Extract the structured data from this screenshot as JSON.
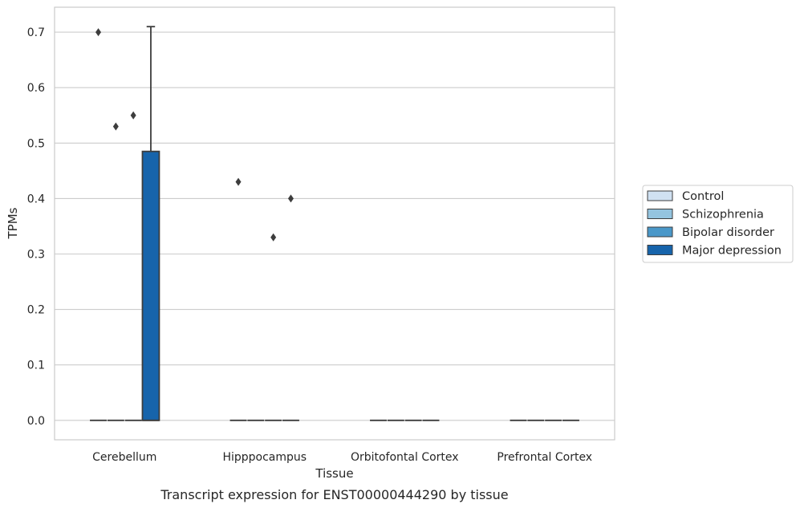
{
  "chart_data": {
    "type": "box",
    "title": "",
    "caption": "Transcript expression for ENST00000444290 by tissue",
    "xlabel": "Tissue",
    "ylabel": "TPMs",
    "ylim": [
      -0.035,
      0.745
    ],
    "yticks": [
      0.0,
      0.1,
      0.2,
      0.3,
      0.4,
      0.5,
      0.6,
      0.7
    ],
    "ytick_labels": [
      "0.0",
      "0.1",
      "0.2",
      "0.3",
      "0.4",
      "0.5",
      "0.6",
      "0.7"
    ],
    "grid": true,
    "legend_position": "right",
    "categories": [
      "Cerebellum",
      "Hipppocampus",
      "Orbitofontal Cortex",
      "Prefrontal Cortex"
    ],
    "series": [
      {
        "name": "Control",
        "color": "#d0e1f2",
        "boxes": [
          {
            "q1": 0,
            "median": 0,
            "q3": 0,
            "whisker_low": 0,
            "whisker_high": 0,
            "outliers": [
              0.7
            ]
          },
          {
            "q1": 0,
            "median": 0,
            "q3": 0,
            "whisker_low": 0,
            "whisker_high": 0,
            "outliers": [
              0.43
            ]
          },
          {
            "q1": 0,
            "median": 0,
            "q3": 0,
            "whisker_low": 0,
            "whisker_high": 0,
            "outliers": []
          },
          {
            "q1": 0,
            "median": 0,
            "q3": 0,
            "whisker_low": 0,
            "whisker_high": 0,
            "outliers": []
          }
        ]
      },
      {
        "name": "Schizophrenia",
        "color": "#94c4df",
        "boxes": [
          {
            "q1": 0,
            "median": 0,
            "q3": 0,
            "whisker_low": 0,
            "whisker_high": 0,
            "outliers": [
              0.53
            ]
          },
          {
            "q1": 0,
            "median": 0,
            "q3": 0,
            "whisker_low": 0,
            "whisker_high": 0,
            "outliers": []
          },
          {
            "q1": 0,
            "median": 0,
            "q3": 0,
            "whisker_low": 0,
            "whisker_high": 0,
            "outliers": []
          },
          {
            "q1": 0,
            "median": 0,
            "q3": 0,
            "whisker_low": 0,
            "whisker_high": 0,
            "outliers": []
          }
        ]
      },
      {
        "name": "Bipolar disorder",
        "color": "#4a98c9",
        "boxes": [
          {
            "q1": 0,
            "median": 0,
            "q3": 0,
            "whisker_low": 0,
            "whisker_high": 0,
            "outliers": [
              0.55
            ]
          },
          {
            "q1": 0,
            "median": 0,
            "q3": 0,
            "whisker_low": 0,
            "whisker_high": 0,
            "outliers": [
              0.33
            ]
          },
          {
            "q1": 0,
            "median": 0,
            "q3": 0,
            "whisker_low": 0,
            "whisker_high": 0,
            "outliers": []
          },
          {
            "q1": 0,
            "median": 0,
            "q3": 0,
            "whisker_low": 0,
            "whisker_high": 0,
            "outliers": []
          }
        ]
      },
      {
        "name": "Major depression",
        "color": "#1764ab",
        "boxes": [
          {
            "q1": 0,
            "median": 0,
            "q3": 0.485,
            "whisker_low": 0,
            "whisker_high": 0.71,
            "outliers": []
          },
          {
            "q1": 0,
            "median": 0,
            "q3": 0,
            "whisker_low": 0,
            "whisker_high": 0,
            "outliers": [
              0.4
            ]
          },
          {
            "q1": 0,
            "median": 0,
            "q3": 0,
            "whisker_low": 0,
            "whisker_high": 0,
            "outliers": []
          },
          {
            "q1": 0,
            "median": 0,
            "q3": 0,
            "whisker_low": 0,
            "whisker_high": 0,
            "outliers": []
          }
        ]
      }
    ]
  }
}
